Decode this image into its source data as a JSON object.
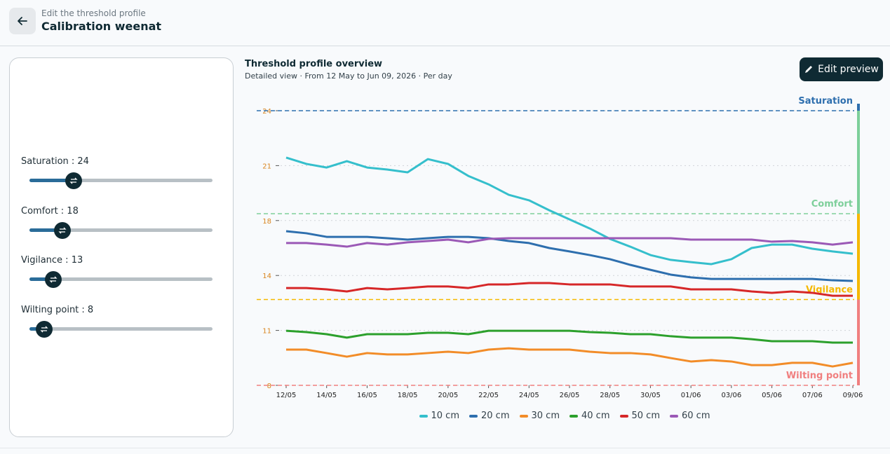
{
  "header": {
    "subtitle": "Edit the threshold profile",
    "title": "Calibration weenat"
  },
  "sliders": [
    {
      "label": "Saturation : 24",
      "value": 24
    },
    {
      "label": "Comfort : 18",
      "value": 18
    },
    {
      "label": "Vigilance : 13",
      "value": 13
    },
    {
      "label": "Wilting point : 8",
      "value": 8
    }
  ],
  "button": "Edit preview",
  "chart_data": {
    "type": "line",
    "title": "Threshold profile overview",
    "subtitle": "Detailed view · From 12 May to Jun 09, 2026 · Per day",
    "categories": [
      "12/05",
      null,
      "14/05",
      null,
      "16/05",
      null,
      "18/05",
      null,
      "20/05",
      null,
      "22/05",
      null,
      "24/05",
      null,
      "26/05",
      null,
      "28/05",
      null,
      "30/05",
      null,
      "01/06",
      null,
      "03/06",
      null,
      "05/06",
      null,
      "07/06",
      null,
      "09/06"
    ],
    "series": [
      {
        "name": "10 cm",
        "color": "#35bfcc",
        "values": [
          21.27,
          20.9,
          20.69,
          21.06,
          20.69,
          20.57,
          20.41,
          21.18,
          20.9,
          20.2,
          19.71,
          19.1,
          18.78,
          18.2,
          17.67,
          17.14,
          16.53,
          16.08,
          15.59,
          15.31,
          15.18,
          15.06,
          15.35,
          16.0,
          16.2,
          16.2,
          15.96,
          15.8,
          15.67
        ]
      },
      {
        "name": "20 cm",
        "color": "#2e6fae",
        "values": [
          16.98,
          16.86,
          16.65,
          16.65,
          16.65,
          16.57,
          16.49,
          16.57,
          16.65,
          16.65,
          16.57,
          16.41,
          16.29,
          16.0,
          15.8,
          15.59,
          15.35,
          15.02,
          14.73,
          14.45,
          14.29,
          14.2,
          14.2,
          14.2,
          14.2,
          14.2,
          14.2,
          14.12,
          14.08
        ]
      },
      {
        "name": "30 cm",
        "color": "#f28c28",
        "values": [
          10.08,
          10.08,
          9.88,
          9.67,
          9.88,
          9.8,
          9.8,
          9.88,
          9.96,
          9.88,
          10.08,
          10.16,
          10.08,
          10.08,
          10.08,
          9.96,
          9.88,
          9.88,
          9.8,
          9.59,
          9.39,
          9.47,
          9.39,
          9.18,
          9.18,
          9.31,
          9.31,
          9.1,
          9.31
        ]
      },
      {
        "name": "40 cm",
        "color": "#2ca02c",
        "values": [
          11.18,
          11.1,
          10.98,
          10.78,
          10.98,
          10.98,
          10.98,
          11.06,
          11.06,
          10.98,
          11.18,
          11.18,
          11.18,
          11.18,
          11.18,
          11.1,
          11.06,
          10.98,
          10.98,
          10.86,
          10.78,
          10.78,
          10.78,
          10.69,
          10.57,
          10.57,
          10.57,
          10.49,
          10.49
        ]
      },
      {
        "name": "50 cm",
        "color": "#d62728",
        "values": [
          13.67,
          13.67,
          13.59,
          13.47,
          13.67,
          13.59,
          13.67,
          13.76,
          13.76,
          13.67,
          13.88,
          13.88,
          13.96,
          13.96,
          13.88,
          13.88,
          13.88,
          13.76,
          13.76,
          13.76,
          13.59,
          13.59,
          13.59,
          13.47,
          13.39,
          13.47,
          13.39,
          13.22,
          13.22
        ]
      },
      {
        "name": "60 cm",
        "color": "#9b59b6",
        "values": [
          16.29,
          16.29,
          16.2,
          16.08,
          16.29,
          16.2,
          16.33,
          16.41,
          16.49,
          16.33,
          16.53,
          16.57,
          16.57,
          16.57,
          16.57,
          16.57,
          16.57,
          16.57,
          16.57,
          16.57,
          16.49,
          16.49,
          16.49,
          16.49,
          16.37,
          16.41,
          16.33,
          16.2,
          16.33
        ]
      }
    ],
    "thresholds": [
      {
        "name": "Saturation",
        "value": 24,
        "color": "#2e6fae"
      },
      {
        "name": "Comfort",
        "value": 18,
        "color": "#7dcf9a"
      },
      {
        "name": "Vigilance",
        "value": 13,
        "color": "#f5b800"
      },
      {
        "name": "Wilting point",
        "value": 8,
        "color": "#f07f7f"
      }
    ],
    "ylim": [
      8,
      24
    ],
    "yticks": [
      8,
      {
        "value": 11.2,
        "label": "11"
      },
      {
        "value": 14.4,
        "label": "14"
      },
      {
        "value": 17.6,
        "label": "18"
      },
      {
        "value": 20.8,
        "label": "21"
      },
      24
    ],
    "grid": true,
    "legend": "bottom"
  }
}
